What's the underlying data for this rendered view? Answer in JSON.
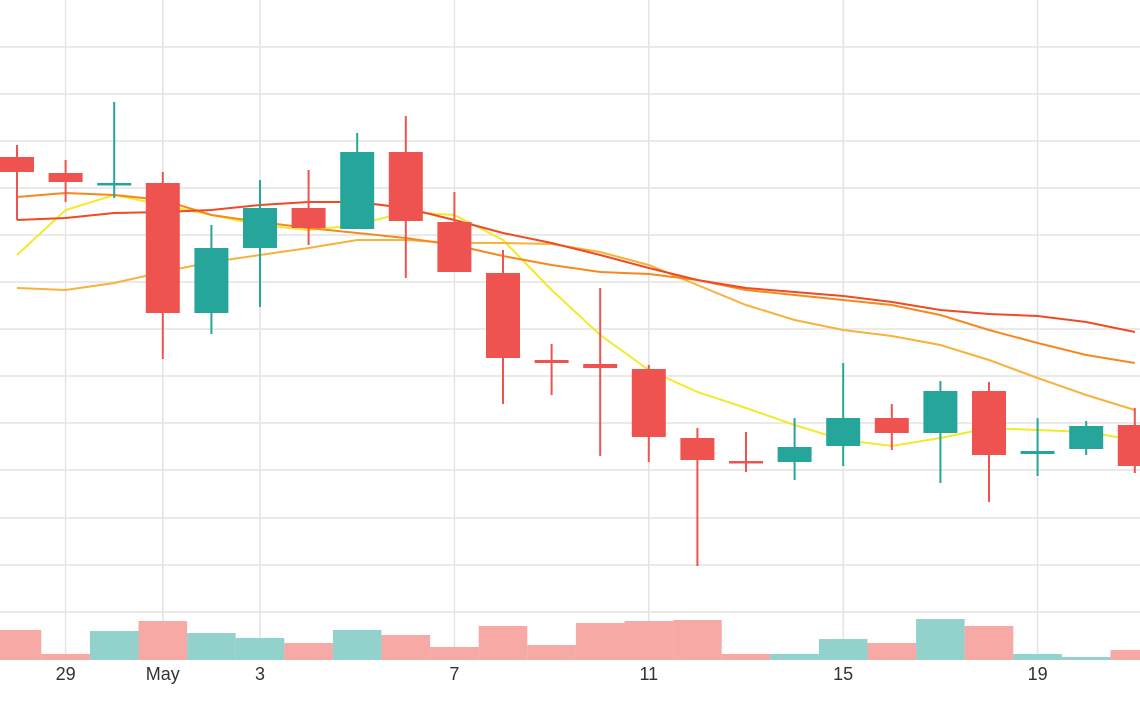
{
  "chart_data": {
    "type": "candlestick",
    "categories": [
      null,
      "29",
      null,
      "May",
      null,
      "3",
      null,
      null,
      null,
      "7",
      null,
      null,
      null,
      "11",
      null,
      null,
      null,
      "15",
      null,
      null,
      null,
      "19",
      null,
      null
    ],
    "open": [
      543,
      527,
      516,
      517,
      387,
      452,
      492,
      471,
      548,
      478,
      427,
      340,
      336,
      331,
      262,
      239,
      238,
      254,
      282,
      267,
      309,
      246,
      251,
      275
    ],
    "high": [
      555,
      540,
      598,
      528,
      475,
      520,
      530,
      567,
      584,
      508,
      450,
      356,
      412,
      335,
      272,
      268,
      282,
      337,
      296,
      319,
      318,
      282,
      279,
      292
    ],
    "low": [
      480,
      498,
      502,
      341,
      366,
      393,
      455,
      471,
      422,
      428,
      296,
      305,
      244,
      238,
      134,
      228,
      220,
      234,
      250,
      217,
      198,
      224,
      245,
      227
    ],
    "close": [
      528,
      518,
      517,
      387,
      452,
      492,
      472,
      548,
      479,
      428,
      342,
      337,
      332,
      263,
      240,
      237,
      253,
      282,
      267,
      309,
      245,
      249,
      274,
      234
    ],
    "up_color": "#26a69a",
    "down_color": "#ef5350",
    "ylim": [
      0,
      700
    ],
    "yticks": [
      653,
      606,
      559,
      512,
      465,
      418,
      371,
      324,
      277,
      230,
      182,
      135,
      88
    ],
    "grid": true,
    "moving_averages": [
      {
        "color": "#f2ea2a",
        "values": [
          445,
          490,
          505,
          495,
          485,
          475,
          470,
          475,
          488,
          485,
          460,
          410,
          365,
          330,
          308,
          292,
          275,
          260,
          254,
          262,
          272,
          270,
          268,
          260
        ]
      },
      {
        "color": "#f7b23b",
        "values": [
          412,
          410,
          417,
          428,
          438,
          445,
          452,
          460,
          460,
          457,
          457,
          456,
          448,
          435,
          415,
          395,
          380,
          370,
          364,
          355,
          340,
          322,
          305,
          290
        ]
      },
      {
        "color": "#f5891f",
        "values": [
          503,
          507,
          505,
          500,
          485,
          478,
          472,
          467,
          462,
          455,
          444,
          435,
          428,
          426,
          420,
          410,
          405,
          400,
          395,
          385,
          370,
          357,
          345,
          337
        ]
      },
      {
        "color": "#ee4b22",
        "values": [
          480,
          482,
          487,
          488,
          490,
          495,
          498,
          498,
          492,
          480,
          467,
          457,
          445,
          432,
          420,
          412,
          408,
          404,
          398,
          390,
          386,
          384,
          378,
          368
        ]
      }
    ],
    "volume": {
      "values": [
        30,
        6,
        29,
        39,
        27,
        22,
        17,
        30,
        25,
        13,
        34,
        15,
        37,
        39,
        40,
        6,
        6,
        21,
        17,
        41,
        34,
        6,
        3,
        10
      ],
      "ylim": [
        0,
        100
      ],
      "up_color": "#93d1cc",
      "down_color": "#f6a9a5"
    }
  }
}
